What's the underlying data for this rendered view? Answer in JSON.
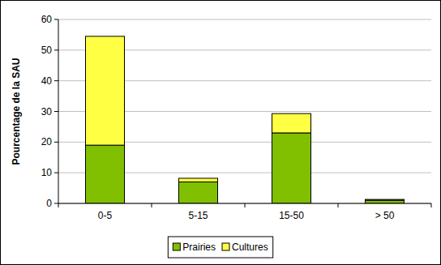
{
  "chart_data": {
    "type": "bar",
    "stacked": true,
    "y_label": "Pourcentage de la SAU",
    "categories": [
      "0-5",
      "5-15",
      "15-50",
      "> 50"
    ],
    "series": [
      {
        "name": "Prairies",
        "color": "#80c000",
        "values": [
          19,
          7,
          23,
          1
        ]
      },
      {
        "name": "Cultures",
        "color": "#ffff44",
        "values": [
          35.5,
          1.2,
          6.3,
          0.3
        ]
      }
    ],
    "ylim": [
      0,
      60
    ],
    "yticks": [
      0,
      10,
      20,
      30,
      40,
      50,
      60
    ],
    "grid": true,
    "legend": "bottom"
  }
}
